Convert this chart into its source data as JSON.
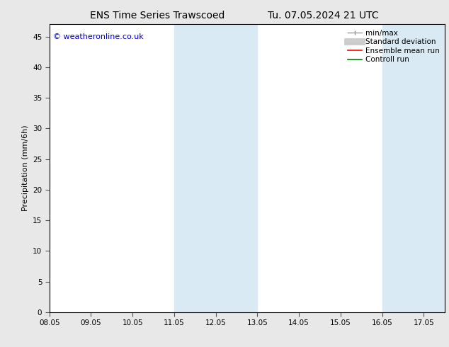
{
  "title_left": "ENS Time Series Trawscoed",
  "title_right": "Tu. 07.05.2024 21 UTC",
  "ylabel": "Precipitation (mm/6h)",
  "xlabel": "",
  "xlim": [
    8.05,
    17.55
  ],
  "ylim": [
    0,
    47
  ],
  "yticks": [
    0,
    5,
    10,
    15,
    20,
    25,
    30,
    35,
    40,
    45
  ],
  "xticks": [
    8.05,
    9.05,
    10.05,
    11.05,
    12.05,
    13.05,
    14.05,
    15.05,
    16.05,
    17.05
  ],
  "xtick_labels": [
    "08.05",
    "09.05",
    "10.05",
    "11.05",
    "12.05",
    "13.05",
    "14.05",
    "15.05",
    "16.05",
    "17.05"
  ],
  "shaded_regions": [
    [
      11.05,
      12.05
    ],
    [
      12.05,
      13.05
    ],
    [
      16.05,
      17.05
    ],
    [
      17.05,
      17.55
    ]
  ],
  "shaded_color": "#daeaf5",
  "bg_color": "#e8e8e8",
  "plot_bg_color": "#ffffff",
  "spine_color": "#000000",
  "copyright_text": "© weatheronline.co.uk",
  "copyright_color": "#0000cc",
  "title_fontsize": 10,
  "tick_fontsize": 7.5,
  "ylabel_fontsize": 8,
  "copyright_fontsize": 8,
  "legend_fontsize": 7.5
}
